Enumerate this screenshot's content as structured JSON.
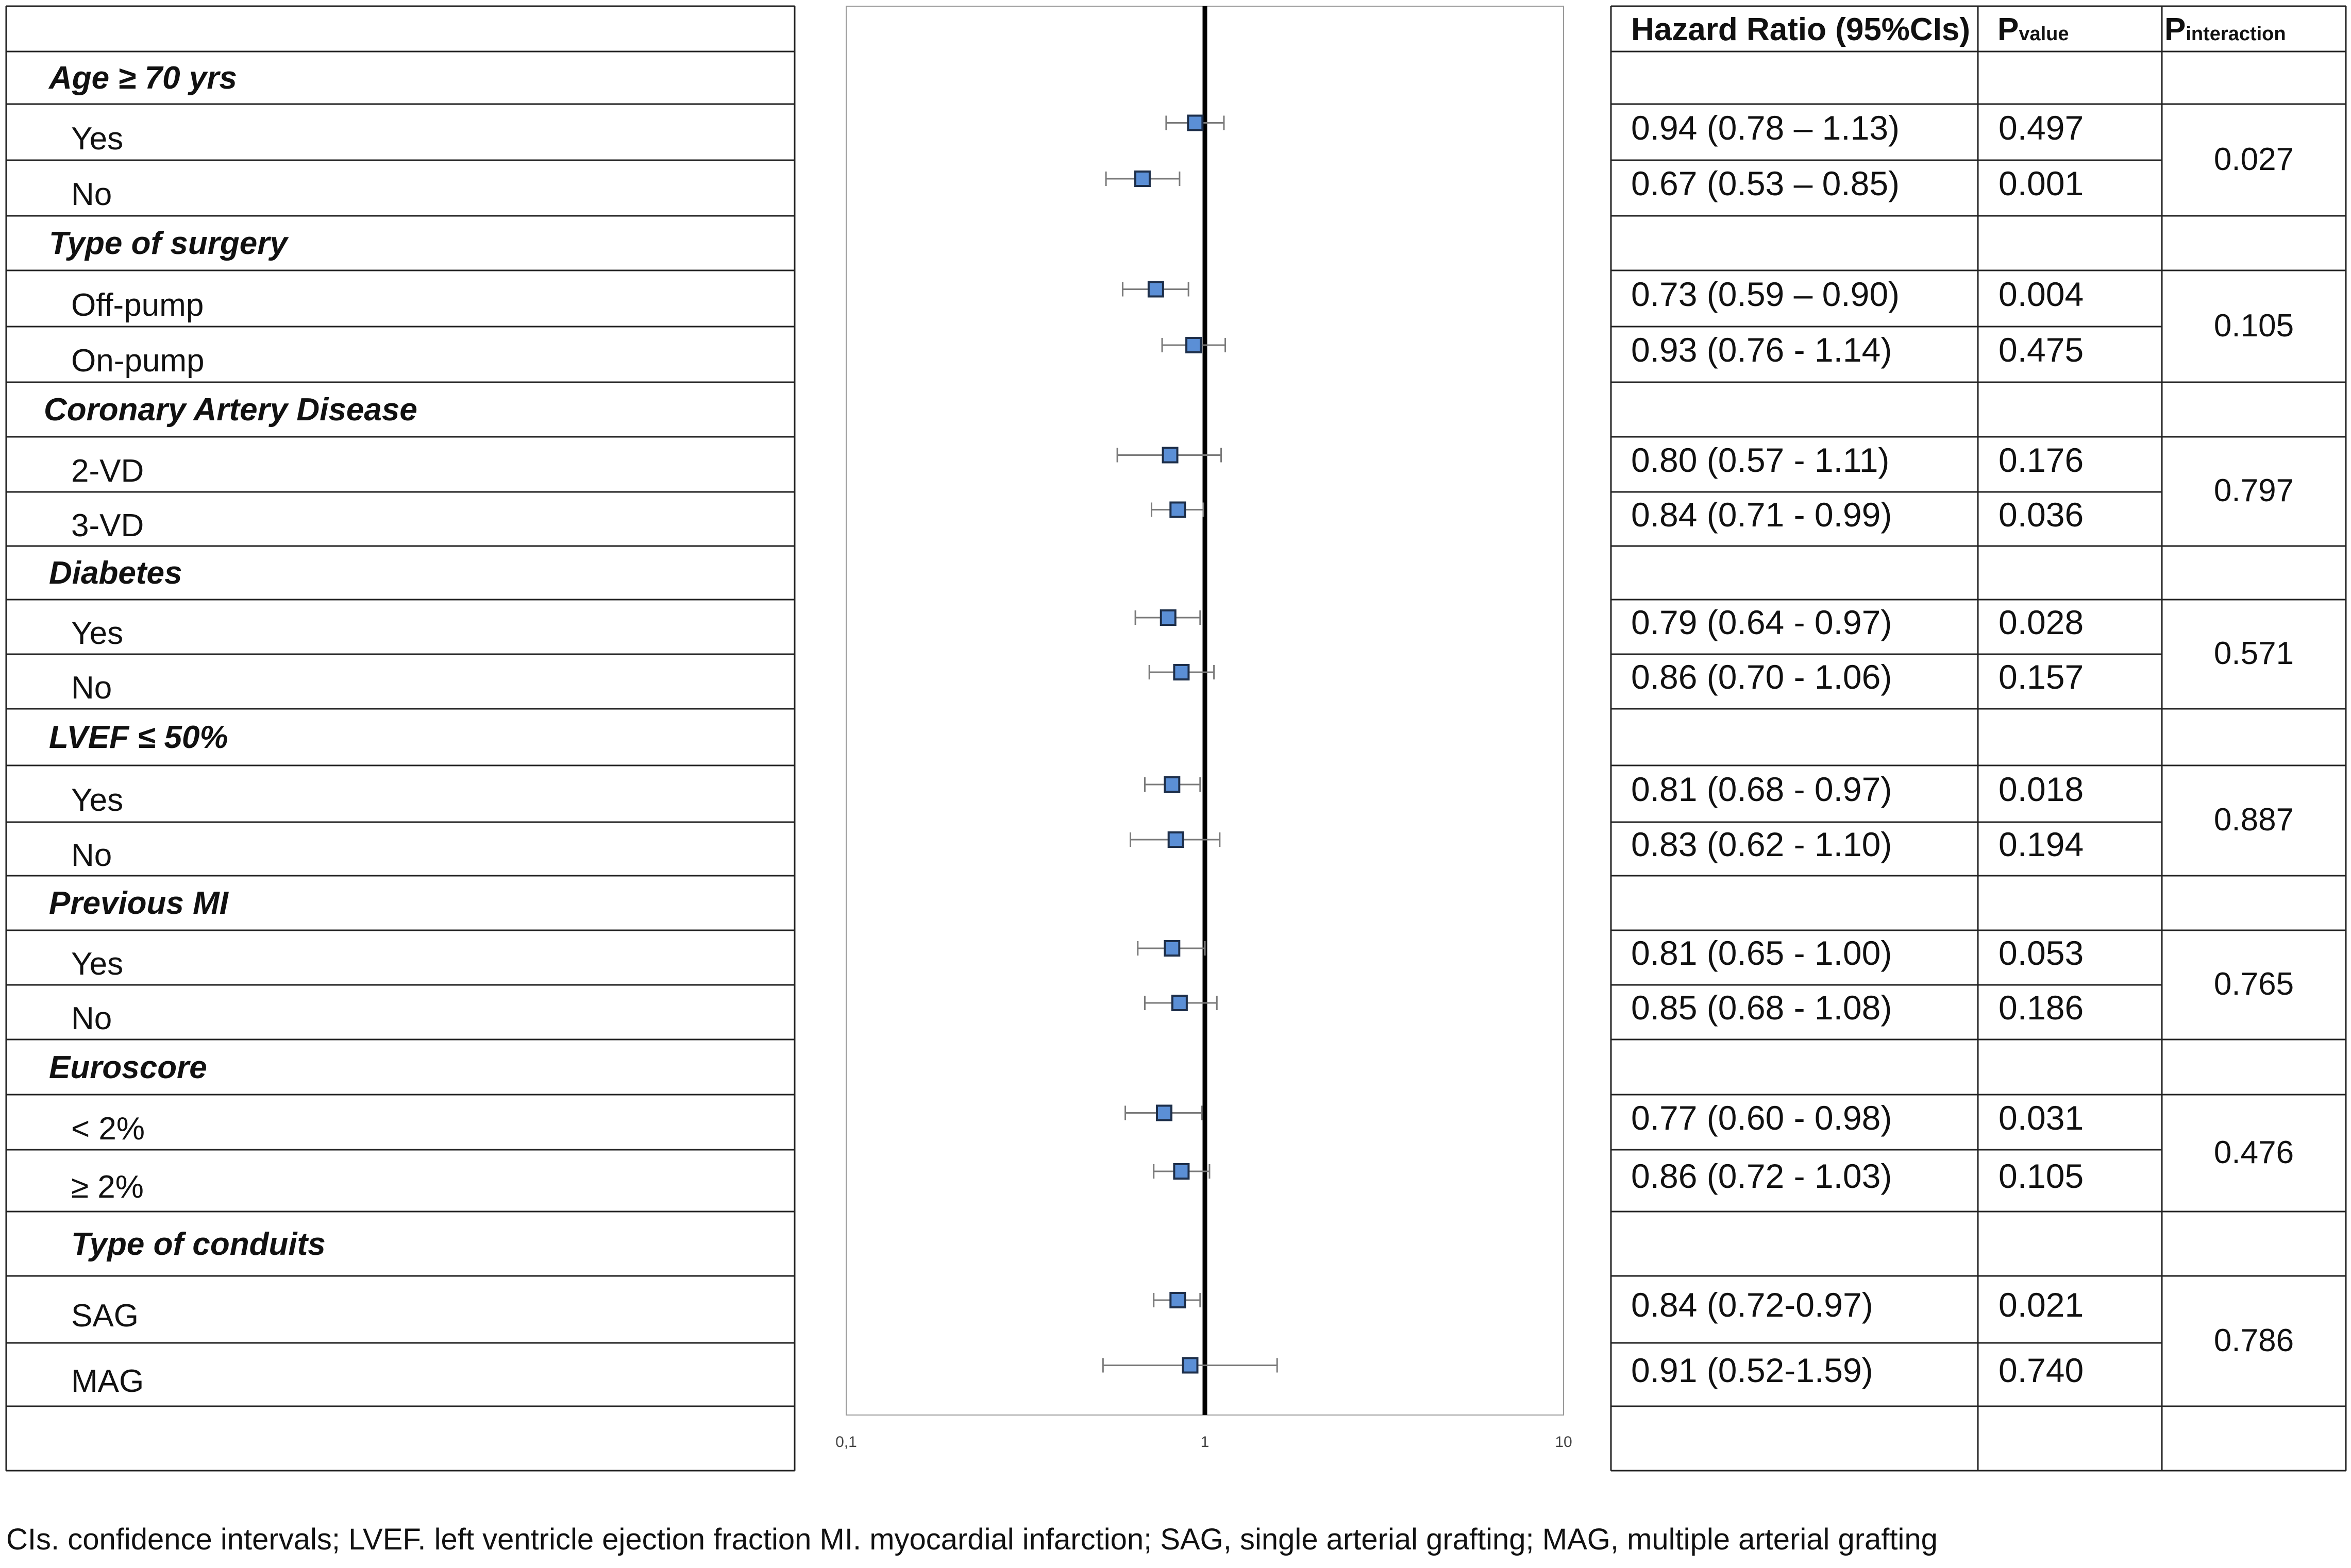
{
  "headers": {
    "hr": "Hazard Ratio (95%CIs)",
    "p_value": {
      "main": "P",
      "sub": "value"
    },
    "p_interaction": {
      "main": "P",
      "sub": "interaction"
    }
  },
  "chart_data": {
    "type": "forest",
    "x_scale": "log",
    "xlim": [
      0.1,
      10
    ],
    "x_ticks": [
      "0,1",
      "1",
      "10"
    ],
    "reference_line": 1,
    "marker_color": "#5b8fd6",
    "groups": [
      {
        "title": "Age ≥ 70 yrs",
        "p_interaction": "0.027",
        "rows": [
          {
            "label": "Yes",
            "hr": 0.94,
            "lo": 0.78,
            "hi": 1.13,
            "hr_text": "0.94 (0.78 – 1.13)",
            "p": "0.497"
          },
          {
            "label": "No",
            "hr": 0.67,
            "lo": 0.53,
            "hi": 0.85,
            "hr_text": "0.67 (0.53 – 0.85)",
            "p": "0.001"
          }
        ]
      },
      {
        "title": "Type of surgery",
        "p_interaction": "0.105",
        "rows": [
          {
            "label": "Off-pump",
            "hr": 0.73,
            "lo": 0.59,
            "hi": 0.9,
            "hr_text": "0.73 (0.59 – 0.90)",
            "p": "0.004"
          },
          {
            "label": "On-pump",
            "hr": 0.93,
            "lo": 0.76,
            "hi": 1.14,
            "hr_text": "0.93 (0.76 - 1.14)",
            "p": "0.475"
          }
        ]
      },
      {
        "title": "Coronary Artery Disease",
        "p_interaction": "0.797",
        "rows": [
          {
            "label": "2-VD",
            "hr": 0.8,
            "lo": 0.57,
            "hi": 1.11,
            "hr_text": "0.80 (0.57 - 1.11)",
            "p": "0.176"
          },
          {
            "label": "3-VD",
            "hr": 0.84,
            "lo": 0.71,
            "hi": 0.99,
            "hr_text": "0.84 (0.71 - 0.99)",
            "p": "0.036"
          }
        ]
      },
      {
        "title": "Diabetes",
        "p_interaction": "0.571",
        "rows": [
          {
            "label": "Yes",
            "hr": 0.79,
            "lo": 0.64,
            "hi": 0.97,
            "hr_text": "0.79 (0.64 - 0.97)",
            "p": "0.028"
          },
          {
            "label": "No",
            "hr": 0.86,
            "lo": 0.7,
            "hi": 1.06,
            "hr_text": "0.86 (0.70 - 1.06)",
            "p": "0.157"
          }
        ]
      },
      {
        "title": "LVEF ≤ 50%",
        "p_interaction": "0.887",
        "rows": [
          {
            "label": "Yes",
            "hr": 0.81,
            "lo": 0.68,
            "hi": 0.97,
            "hr_text": "0.81 (0.68 - 0.97)",
            "p": "0.018"
          },
          {
            "label": "No",
            "hr": 0.83,
            "lo": 0.62,
            "hi": 1.1,
            "hr_text": "0.83 (0.62 - 1.10)",
            "p": "0.194"
          }
        ]
      },
      {
        "title": "Previous MI",
        "p_interaction": "0.765",
        "rows": [
          {
            "label": "Yes",
            "hr": 0.81,
            "lo": 0.65,
            "hi": 1.0,
            "hr_text": "0.81 (0.65 - 1.00)",
            "p": "0.053"
          },
          {
            "label": "No",
            "hr": 0.85,
            "lo": 0.68,
            "hi": 1.08,
            "hr_text": "0.85 (0.68 - 1.08)",
            "p": "0.186"
          }
        ]
      },
      {
        "title": "Euroscore",
        "p_interaction": "0.476",
        "rows": [
          {
            "label": "< 2%",
            "hr": 0.77,
            "lo": 0.6,
            "hi": 0.98,
            "hr_text": "0.77 (0.60 - 0.98)",
            "p": "0.031"
          },
          {
            "label": "≥ 2%",
            "hr": 0.86,
            "lo": 0.72,
            "hi": 1.03,
            "hr_text": "0.86 (0.72 - 1.03)",
            "p": "0.105"
          }
        ]
      },
      {
        "title": "Type of conduits",
        "p_interaction": "0.786",
        "rows": [
          {
            "label": "SAG",
            "hr": 0.84,
            "lo": 0.72,
            "hi": 0.97,
            "hr_text": "0.84 (0.72-0.97)",
            "p": "0.021"
          },
          {
            "label": "MAG",
            "hr": 0.91,
            "lo": 0.52,
            "hi": 1.59,
            "hr_text": "0.91 (0.52-1.59)",
            "p": "0.740"
          }
        ]
      }
    ]
  },
  "caption": "CIs. confidence intervals; LVEF. left ventricle ejection fraction MI. myocardial infarction; SAG, single arterial grafting; MAG, multiple arterial grafting"
}
